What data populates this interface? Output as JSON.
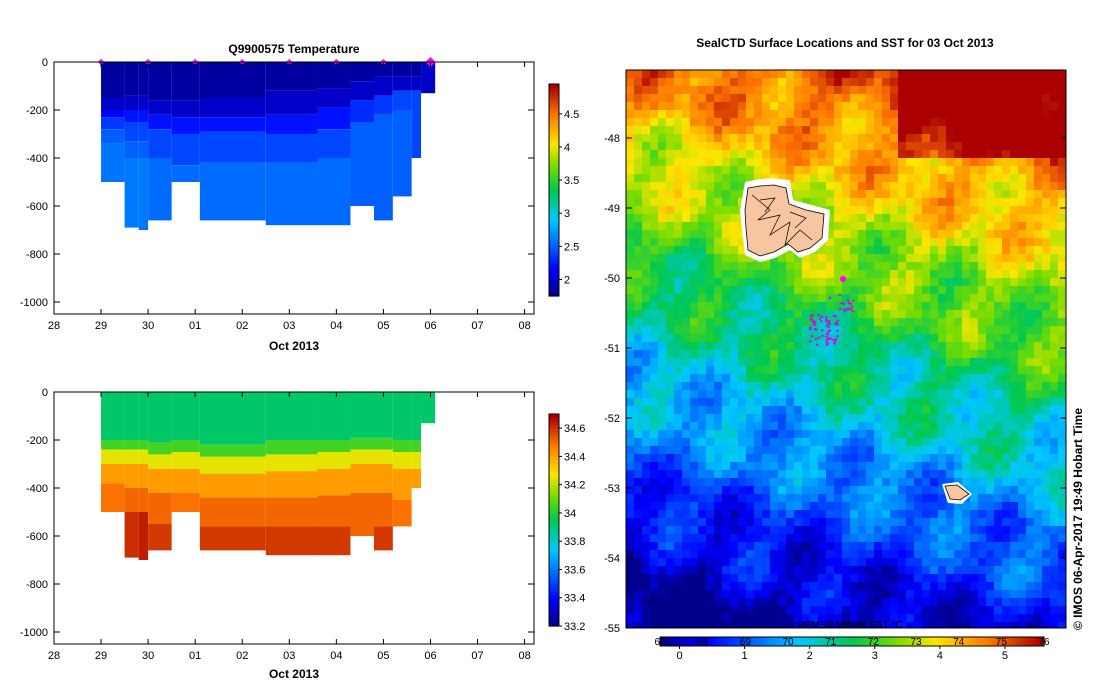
{
  "chart_data": [
    {
      "id": "temp",
      "type": "heatmap",
      "title": "Q9900575  Temperature",
      "xlabel": "Oct 2013",
      "xticks": [
        "28",
        "29",
        "30",
        "01",
        "02",
        "03",
        "04",
        "05",
        "06",
        "07",
        "08"
      ],
      "yticks": [
        "0",
        "-200",
        "-400",
        "-600",
        "-800",
        "-1000"
      ],
      "ylim": [
        -1050,
        0
      ],
      "colorbar_ticks": [
        "2",
        "2.5",
        "3",
        "3.5",
        "4",
        "4.5"
      ],
      "colorbar_range": [
        1.75,
        4.95
      ],
      "profile_markers_x": [
        29,
        30,
        31,
        32,
        33,
        34,
        35,
        36
      ],
      "latest_marker_x": 36,
      "profiles": [
        {
          "x0": 29.0,
          "x1": 29.5,
          "maxdepth": 500,
          "layers": [
            [
              0,
              150,
              1.82
            ],
            [
              150,
              200,
              1.95
            ],
            [
              200,
              230,
              2.15
            ],
            [
              230,
              280,
              2.35
            ],
            [
              280,
              340,
              2.5
            ],
            [
              340,
              500,
              2.58
            ]
          ]
        },
        {
          "x0": 29.5,
          "x1": 29.8,
          "maxdepth": 690,
          "layers": [
            [
              0,
              140,
              1.82
            ],
            [
              140,
              200,
              1.95
            ],
            [
              200,
              250,
              2.2
            ],
            [
              250,
              330,
              2.4
            ],
            [
              330,
              400,
              2.5
            ],
            [
              400,
              690,
              2.6
            ]
          ]
        },
        {
          "x0": 29.8,
          "x1": 30.0,
          "maxdepth": 700,
          "layers": [
            [
              0,
              140,
              1.82
            ],
            [
              140,
              200,
              1.95
            ],
            [
              200,
              250,
              2.2
            ],
            [
              250,
              330,
              2.4
            ],
            [
              330,
              400,
              2.5
            ],
            [
              400,
              700,
              2.6
            ]
          ]
        },
        {
          "x0": 30.0,
          "x1": 30.5,
          "maxdepth": 660,
          "layers": [
            [
              0,
              160,
              1.82
            ],
            [
              160,
              220,
              1.95
            ],
            [
              220,
              280,
              2.2
            ],
            [
              280,
              400,
              2.4
            ],
            [
              400,
              660,
              2.55
            ]
          ]
        },
        {
          "x0": 30.5,
          "x1": 31.1,
          "maxdepth": 500,
          "layers": [
            [
              0,
              160,
              1.82
            ],
            [
              160,
              230,
              1.95
            ],
            [
              230,
              300,
              2.2
            ],
            [
              300,
              430,
              2.4
            ],
            [
              430,
              500,
              2.55
            ]
          ]
        },
        {
          "x0": 31.1,
          "x1": 32.5,
          "maxdepth": 660,
          "layers": [
            [
              0,
              150,
              1.82
            ],
            [
              150,
              230,
              1.95
            ],
            [
              230,
              290,
              2.2
            ],
            [
              290,
              420,
              2.4
            ],
            [
              420,
              660,
              2.55
            ]
          ]
        },
        {
          "x0": 32.5,
          "x1": 33.6,
          "maxdepth": 680,
          "layers": [
            [
              0,
              120,
              1.82
            ],
            [
              120,
              220,
              1.95
            ],
            [
              220,
              300,
              2.2
            ],
            [
              300,
              420,
              2.4
            ],
            [
              420,
              680,
              2.55
            ]
          ]
        },
        {
          "x0": 33.6,
          "x1": 34.3,
          "maxdepth": 680,
          "layers": [
            [
              0,
              110,
              1.82
            ],
            [
              110,
              190,
              1.95
            ],
            [
              190,
              280,
              2.2
            ],
            [
              280,
              400,
              2.4
            ],
            [
              400,
              680,
              2.55
            ]
          ]
        },
        {
          "x0": 34.3,
          "x1": 34.8,
          "maxdepth": 600,
          "layers": [
            [
              0,
              80,
              1.82
            ],
            [
              80,
              160,
              1.95
            ],
            [
              160,
              250,
              2.3
            ],
            [
              250,
              600,
              2.5
            ]
          ]
        },
        {
          "x0": 34.8,
          "x1": 35.2,
          "maxdepth": 660,
          "layers": [
            [
              0,
              60,
              1.82
            ],
            [
              60,
              140,
              1.95
            ],
            [
              140,
              220,
              2.35
            ],
            [
              220,
              660,
              2.5
            ]
          ]
        },
        {
          "x0": 35.2,
          "x1": 35.6,
          "maxdepth": 560,
          "layers": [
            [
              0,
              60,
              1.82
            ],
            [
              60,
              120,
              1.95
            ],
            [
              120,
              200,
              2.4
            ],
            [
              200,
              560,
              2.5
            ]
          ]
        },
        {
          "x0": 35.6,
          "x1": 35.8,
          "maxdepth": 400,
          "layers": [
            [
              0,
              60,
              1.82
            ],
            [
              60,
              120,
              1.95
            ],
            [
              120,
              400,
              2.4
            ]
          ]
        },
        {
          "x0": 35.8,
          "x1": 36.1,
          "maxdepth": 130,
          "layers": [
            [
              0,
              130,
              1.95
            ]
          ]
        }
      ]
    },
    {
      "id": "sal",
      "type": "heatmap",
      "title": "",
      "xlabel": "Oct 2013",
      "xticks": [
        "28",
        "29",
        "30",
        "01",
        "02",
        "03",
        "04",
        "05",
        "06",
        "07",
        "08"
      ],
      "yticks": [
        "0",
        "-200",
        "-400",
        "-600",
        "-800",
        "-1000"
      ],
      "ylim": [
        -1050,
        0
      ],
      "colorbar_ticks": [
        "33.2",
        "33.4",
        "33.6",
        "33.8",
        "34",
        "34.2",
        "34.4",
        "34.6"
      ],
      "colorbar_range": [
        33.2,
        34.7
      ],
      "profiles": [
        {
          "x0": 29.0,
          "x1": 29.5,
          "maxdepth": 500,
          "layers": [
            [
              0,
              200,
              33.92
            ],
            [
              200,
              240,
              34.05
            ],
            [
              240,
              300,
              34.25
            ],
            [
              300,
              380,
              34.42
            ],
            [
              380,
              500,
              34.5
            ]
          ]
        },
        {
          "x0": 29.5,
          "x1": 29.8,
          "maxdepth": 690,
          "layers": [
            [
              0,
              200,
              33.92
            ],
            [
              200,
              240,
              34.05
            ],
            [
              240,
              300,
              34.25
            ],
            [
              300,
              400,
              34.42
            ],
            [
              400,
              500,
              34.52
            ],
            [
              500,
              690,
              34.62
            ]
          ]
        },
        {
          "x0": 29.8,
          "x1": 30.0,
          "maxdepth": 700,
          "layers": [
            [
              0,
              200,
              33.92
            ],
            [
              200,
              240,
              34.05
            ],
            [
              240,
              300,
              34.25
            ],
            [
              300,
              400,
              34.42
            ],
            [
              400,
              500,
              34.52
            ],
            [
              500,
              700,
              34.65
            ]
          ]
        },
        {
          "x0": 30.0,
          "x1": 30.5,
          "maxdepth": 660,
          "layers": [
            [
              0,
              210,
              33.92
            ],
            [
              210,
              260,
              34.05
            ],
            [
              260,
              320,
              34.25
            ],
            [
              320,
              420,
              34.42
            ],
            [
              420,
              550,
              34.52
            ],
            [
              550,
              660,
              34.6
            ]
          ]
        },
        {
          "x0": 30.5,
          "x1": 31.1,
          "maxdepth": 500,
          "layers": [
            [
              0,
              200,
              33.92
            ],
            [
              200,
              250,
              34.05
            ],
            [
              250,
              320,
              34.25
            ],
            [
              320,
              420,
              34.42
            ],
            [
              420,
              500,
              34.5
            ]
          ]
        },
        {
          "x0": 31.1,
          "x1": 32.5,
          "maxdepth": 660,
          "layers": [
            [
              0,
              220,
              33.92
            ],
            [
              220,
              270,
              34.05
            ],
            [
              270,
              340,
              34.25
            ],
            [
              340,
              440,
              34.42
            ],
            [
              440,
              560,
              34.52
            ],
            [
              560,
              660,
              34.6
            ]
          ]
        },
        {
          "x0": 32.5,
          "x1": 33.6,
          "maxdepth": 680,
          "layers": [
            [
              0,
              200,
              33.92
            ],
            [
              200,
              260,
              34.05
            ],
            [
              260,
              330,
              34.25
            ],
            [
              330,
              440,
              34.42
            ],
            [
              440,
              560,
              34.52
            ],
            [
              560,
              680,
              34.6
            ]
          ]
        },
        {
          "x0": 33.6,
          "x1": 34.3,
          "maxdepth": 680,
          "layers": [
            [
              0,
              200,
              33.92
            ],
            [
              200,
              250,
              34.05
            ],
            [
              250,
              320,
              34.25
            ],
            [
              320,
              430,
              34.42
            ],
            [
              430,
              560,
              34.52
            ],
            [
              560,
              680,
              34.6
            ]
          ]
        },
        {
          "x0": 34.3,
          "x1": 34.8,
          "maxdepth": 600,
          "layers": [
            [
              0,
              190,
              33.92
            ],
            [
              190,
              240,
              34.05
            ],
            [
              240,
              300,
              34.25
            ],
            [
              300,
              420,
              34.42
            ],
            [
              420,
              600,
              34.52
            ]
          ]
        },
        {
          "x0": 34.8,
          "x1": 35.2,
          "maxdepth": 660,
          "layers": [
            [
              0,
              190,
              33.92
            ],
            [
              190,
              240,
              34.05
            ],
            [
              240,
              300,
              34.25
            ],
            [
              300,
              420,
              34.42
            ],
            [
              420,
              560,
              34.52
            ],
            [
              560,
              660,
              34.6
            ]
          ]
        },
        {
          "x0": 35.2,
          "x1": 35.6,
          "maxdepth": 560,
          "layers": [
            [
              0,
              200,
              33.92
            ],
            [
              200,
              250,
              34.05
            ],
            [
              250,
              320,
              34.25
            ],
            [
              320,
              450,
              34.42
            ],
            [
              450,
              560,
              34.5
            ]
          ]
        },
        {
          "x0": 35.6,
          "x1": 35.8,
          "maxdepth": 400,
          "layers": [
            [
              0,
              200,
              33.92
            ],
            [
              200,
              250,
              34.05
            ],
            [
              250,
              320,
              34.25
            ],
            [
              320,
              400,
              34.42
            ]
          ]
        },
        {
          "x0": 35.8,
          "x1": 36.1,
          "maxdepth": 130,
          "layers": [
            [
              0,
              130,
              33.92
            ]
          ]
        }
      ]
    },
    {
      "id": "sst",
      "type": "heatmap",
      "title": "SealCTD Surface Locations and SST for 03 Oct 2013",
      "yticks": [
        "-48",
        "-49",
        "-50",
        "-51",
        "-52",
        "-53",
        "-54",
        "-55"
      ],
      "ylim": [
        -55,
        -47
      ],
      "colorbar_bottom_ticks": [
        "0",
        "1",
        "2",
        "3",
        "4",
        "5"
      ],
      "colorbar_top_ticks": [
        "67",
        "68",
        "69",
        "70",
        "71",
        "72",
        "73",
        "74",
        "75",
        "76"
      ],
      "colorbar_range": [
        -0.3,
        5.6
      ],
      "product_label": "REMSS MW-IR SST °C",
      "credit": "© IMOS 06-Apr-2017 19:49 Hobart Time"
    }
  ]
}
